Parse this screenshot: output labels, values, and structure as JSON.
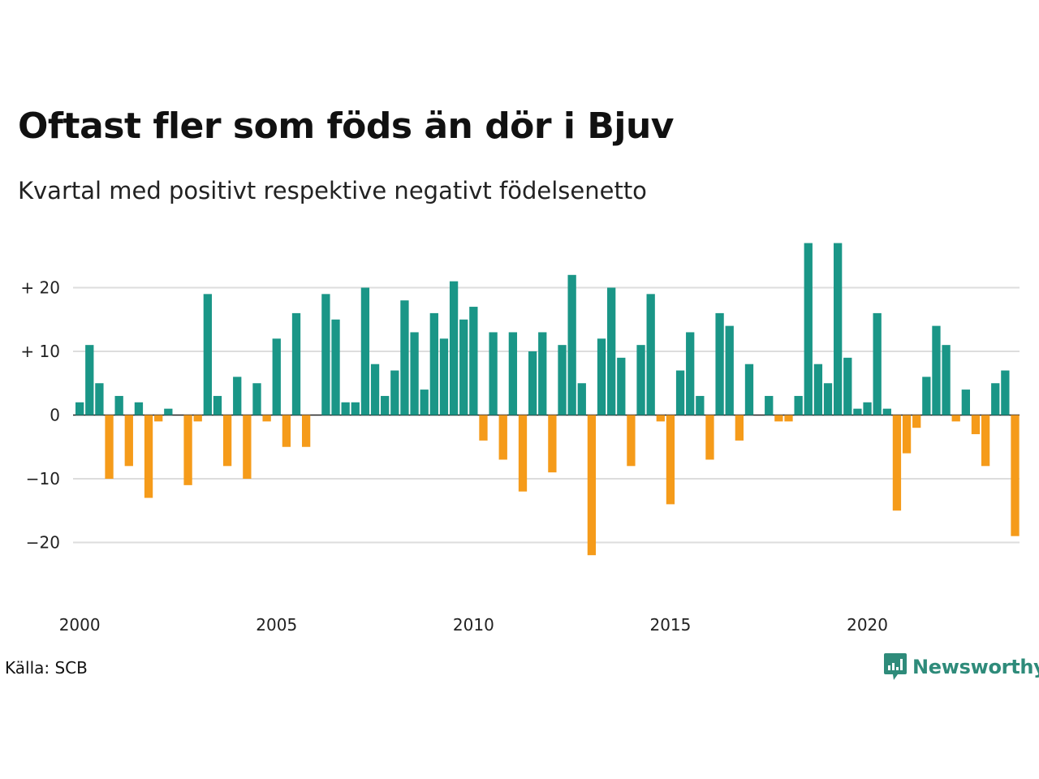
{
  "title": "Oftast fler som föds än dör i Bjuv",
  "subtitle": "Kvartal med positivt respektive negativt födelsenetto",
  "source": "Källa: SCB",
  "logo_text": "Newsworthy",
  "colors": {
    "positive": "#1a9687",
    "negative": "#f59b1a",
    "grid": "#dddddd",
    "zero": "#222222"
  },
  "chart_data": {
    "type": "bar",
    "x_start": "2000 Q1",
    "x_ticks": [
      "2000",
      "2005",
      "2010",
      "2015",
      "2020"
    ],
    "y_ticks": [
      {
        "value": 20,
        "label": "+ 20"
      },
      {
        "value": 10,
        "label": "+ 10"
      },
      {
        "value": 0,
        "label": "0"
      },
      {
        "value": -10,
        "label": "−10"
      },
      {
        "value": -20,
        "label": "−20"
      }
    ],
    "ylim": [
      -27,
      27
    ],
    "grid": true,
    "values": [
      2,
      11,
      5,
      -10,
      3,
      -8,
      2,
      -13,
      -1,
      1,
      0,
      -11,
      -1,
      19,
      3,
      -8,
      6,
      -10,
      5,
      -1,
      12,
      -5,
      16,
      -5,
      0,
      19,
      15,
      2,
      2,
      20,
      8,
      3,
      7,
      18,
      13,
      4,
      16,
      12,
      21,
      15,
      17,
      -4,
      13,
      -7,
      13,
      -12,
      10,
      13,
      -9,
      11,
      22,
      5,
      -22,
      12,
      20,
      9,
      -8,
      11,
      19,
      -1,
      -14,
      7,
      13,
      3,
      -7,
      16,
      14,
      -4,
      8,
      0,
      3,
      -1,
      -1,
      3,
      27,
      8,
      5,
      27,
      9,
      1,
      2,
      16,
      1,
      -15,
      -6,
      -2,
      6,
      14,
      11,
      -1,
      4,
      -3,
      -8,
      5,
      7,
      -19
    ]
  }
}
